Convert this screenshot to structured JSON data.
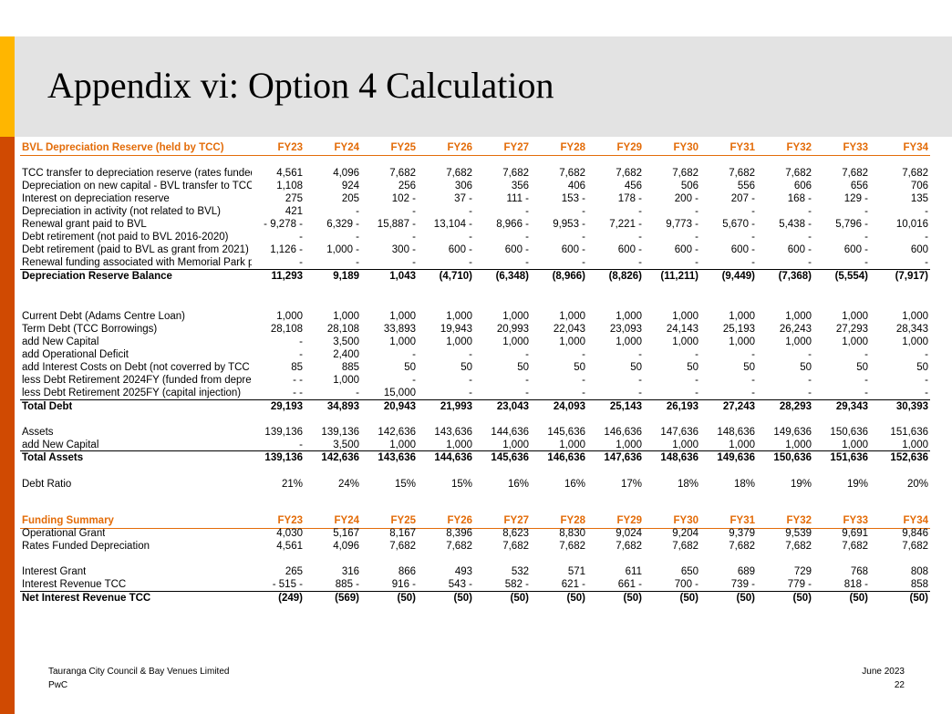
{
  "title": "Appendix vi: Option 4 Calculation",
  "colors": {
    "yellow_bar": "#FFB600",
    "orange_bar": "#D04A02",
    "header_band": "#e3e3e3",
    "section_header": "#E36C09"
  },
  "footer": {
    "left_line1": "Tauranga City Council & Bay Venues Limited",
    "left_line2": "PwC",
    "right_line1": "June 2023",
    "right_line2": "22"
  },
  "sheet": {
    "year_headers": [
      "FY23",
      "FY24",
      "FY25",
      "FY26",
      "FY27",
      "FY28",
      "FY29",
      "FY30",
      "FY31",
      "FY32",
      "FY33",
      "FY34"
    ],
    "funding_year_headers": [
      "FY23",
      "FY24",
      "FY25",
      "FY26",
      "FY27",
      "FY28",
      "FY29",
      "FY30",
      "FY31",
      "FY32",
      "FY33",
      "FY34"
    ],
    "rows": [
      {
        "style": "header",
        "label": "BVL Depreciation Reserve (held by TCC)",
        "values": [
          "FY23",
          "FY24",
          "FY25",
          "FY26",
          "FY27",
          "FY28",
          "FY29",
          "FY30",
          "FY31",
          "FY32",
          "FY33",
          "FY34"
        ]
      },
      {
        "style": "normal",
        "label": "TCC transfer to depreciation reserve (rates funded",
        "values": [
          "4,561",
          "4,096",
          "7,682",
          "7,682",
          "7,682",
          "7,682",
          "7,682",
          "7,682",
          "7,682",
          "7,682",
          "7,682",
          "7,682"
        ]
      },
      {
        "style": "normal",
        "label": "Depreciation on new capital  - BVL transfer to TCC",
        "values": [
          "1,108",
          "924",
          "256",
          "306",
          "356",
          "406",
          "456",
          "506",
          "556",
          "606",
          "656",
          "706"
        ]
      },
      {
        "style": "normal",
        "label": "Interest on depreciation reserve",
        "values": [
          "275",
          "205",
          "102 -",
          "37 -",
          "111 -",
          "153 -",
          "178 -",
          "200 -",
          "207 -",
          "168 -",
          "129 -",
          "135"
        ]
      },
      {
        "style": "normal",
        "label": "Depreciation in activity  (not related to BVL)",
        "values": [
          "421",
          "-",
          "-",
          "-",
          "-",
          "-",
          "-",
          "-",
          "-",
          "-",
          "-",
          "-"
        ]
      },
      {
        "style": "normal",
        "label": "Renewal grant paid to BVL",
        "values": [
          "- 9,278 -",
          "6,329 -",
          "15,887 -",
          "13,104 -",
          "8,966 -",
          "9,953 -",
          "7,221 -",
          "9,773 -",
          "5,670 -",
          "5,438 -",
          "5,796 -",
          "10,016"
        ]
      },
      {
        "style": "normal",
        "label": "Debt retirement (not paid to BVL 2016-2020)",
        "values": [
          "-",
          "-",
          "-",
          "-",
          "-",
          "-",
          "-",
          "-",
          "-",
          "-",
          "-",
          "-"
        ]
      },
      {
        "style": "normal",
        "label": "Debt retirement (paid to BVL as grant from 2021) -",
        "values": [
          "1,126 -",
          "1,000 -",
          "300 -",
          "600 -",
          "600 -",
          "600 -",
          "600 -",
          "600 -",
          "600 -",
          "600 -",
          "600 -",
          "600"
        ]
      },
      {
        "style": "normal",
        "label": "Renewal funding associated with Memorial Park p",
        "values": [
          "-",
          "-",
          "-",
          "-",
          "-",
          "-",
          "-",
          "-",
          "-",
          "-",
          "-",
          "-"
        ]
      },
      {
        "style": "total",
        "label": "Depreciation Reserve Balance",
        "values": [
          "11,293",
          "9,189",
          "1,043",
          "(4,710)",
          "(6,348)",
          "(8,966)",
          "(8,826)",
          "(11,211)",
          "(9,449)",
          "(7,368)",
          "(5,554)",
          "(7,917)"
        ]
      },
      {
        "style": "normal",
        "label": "Current Debt (Adams Centre Loan)",
        "values": [
          "1,000",
          "1,000",
          "1,000",
          "1,000",
          "1,000",
          "1,000",
          "1,000",
          "1,000",
          "1,000",
          "1,000",
          "1,000",
          "1,000"
        ]
      },
      {
        "style": "normal",
        "label": "Term Debt (TCC Borrowings)",
        "values": [
          "28,108",
          "28,108",
          "33,893",
          "19,943",
          "20,993",
          "22,043",
          "23,093",
          "24,143",
          "25,193",
          "26,243",
          "27,293",
          "28,343"
        ]
      },
      {
        "style": "normal",
        "label": "add New Capital",
        "values": [
          "-",
          "3,500",
          "1,000",
          "1,000",
          "1,000",
          "1,000",
          "1,000",
          "1,000",
          "1,000",
          "1,000",
          "1,000",
          "1,000"
        ]
      },
      {
        "style": "normal",
        "label": "add Operational Deficit",
        "values": [
          "-",
          "2,400",
          "-",
          "-",
          "-",
          "-",
          "-",
          "-",
          "-",
          "-",
          "-",
          "-"
        ]
      },
      {
        "style": "normal",
        "label": "add Interest Costs on Debt (not coverred by TCC",
        "values": [
          "85",
          "885",
          "50",
          "50",
          "50",
          "50",
          "50",
          "50",
          "50",
          "50",
          "50",
          "50"
        ]
      },
      {
        "style": "normal",
        "label": "less Debt Retirement 2024FY (funded from depre",
        "values": [
          "- -",
          "1,000",
          "-",
          "-",
          "-",
          "-",
          "-",
          "-",
          "-",
          "-",
          "-",
          "-"
        ]
      },
      {
        "style": "normal",
        "label": "less Debt Retirement 2025FY (capital injection)",
        "values": [
          "- -",
          "-",
          "15,000",
          "-",
          "-",
          "-",
          "-",
          "-",
          "-",
          "-",
          "-",
          "-"
        ]
      },
      {
        "style": "total",
        "label": "Total Debt",
        "values": [
          "29,193",
          "34,893",
          "20,943",
          "21,993",
          "23,043",
          "24,093",
          "25,143",
          "26,193",
          "27,243",
          "28,293",
          "29,343",
          "30,393"
        ]
      },
      {
        "style": "normal",
        "label": "Assets",
        "values": [
          "139,136",
          "139,136",
          "142,636",
          "143,636",
          "144,636",
          "145,636",
          "146,636",
          "147,636",
          "148,636",
          "149,636",
          "150,636",
          "151,636"
        ]
      },
      {
        "style": "normal",
        "label": "add New Capital",
        "values": [
          "-",
          "3,500",
          "1,000",
          "1,000",
          "1,000",
          "1,000",
          "1,000",
          "1,000",
          "1,000",
          "1,000",
          "1,000",
          "1,000"
        ]
      },
      {
        "style": "total",
        "label": "Total Assets",
        "values": [
          "139,136",
          "142,636",
          "143,636",
          "144,636",
          "145,636",
          "146,636",
          "147,636",
          "148,636",
          "149,636",
          "150,636",
          "151,636",
          "152,636"
        ]
      },
      {
        "style": "normal",
        "label": "Debt Ratio",
        "values": [
          "21%",
          "24%",
          "15%",
          "15%",
          "16%",
          "16%",
          "17%",
          "18%",
          "18%",
          "19%",
          "19%",
          "20%"
        ]
      },
      {
        "style": "header",
        "label": "Funding Summary",
        "values": [
          "FY23",
          "FY24",
          "FY25",
          "FY26",
          "FY27",
          "FY28",
          "FY29",
          "FY30",
          "FY31",
          "FY32",
          "FY33",
          "FY34"
        ]
      },
      {
        "style": "normal",
        "label": "Operational Grant",
        "values": [
          "4,030",
          "5,167",
          "8,167",
          "8,396",
          "8,623",
          "8,830",
          "9,024",
          "9,204",
          "9,379",
          "9,539",
          "9,691",
          "9,846"
        ]
      },
      {
        "style": "normal",
        "label": "Rates Funded Depreciation",
        "values": [
          "4,561",
          "4,096",
          "7,682",
          "7,682",
          "7,682",
          "7,682",
          "7,682",
          "7,682",
          "7,682",
          "7,682",
          "7,682",
          "7,682"
        ]
      },
      {
        "style": "normal",
        "label": "Interest Grant",
        "values": [
          "265",
          "316",
          "866",
          "493",
          "532",
          "571",
          "611",
          "650",
          "689",
          "729",
          "768",
          "808"
        ]
      },
      {
        "style": "normal",
        "label": "Interest Revenue TCC",
        "values": [
          "- 515 -",
          "885 -",
          "916 -",
          "543 -",
          "582 -",
          "621 -",
          "661 -",
          "700 -",
          "739 -",
          "779 -",
          "818 -",
          "858"
        ]
      },
      {
        "style": "total",
        "label": "Net Interest Revenue TCC",
        "values": [
          "(249)",
          "(569)",
          "(50)",
          "(50)",
          "(50)",
          "(50)",
          "(50)",
          "(50)",
          "(50)",
          "(50)",
          "(50)",
          "(50)"
        ]
      }
    ]
  }
}
